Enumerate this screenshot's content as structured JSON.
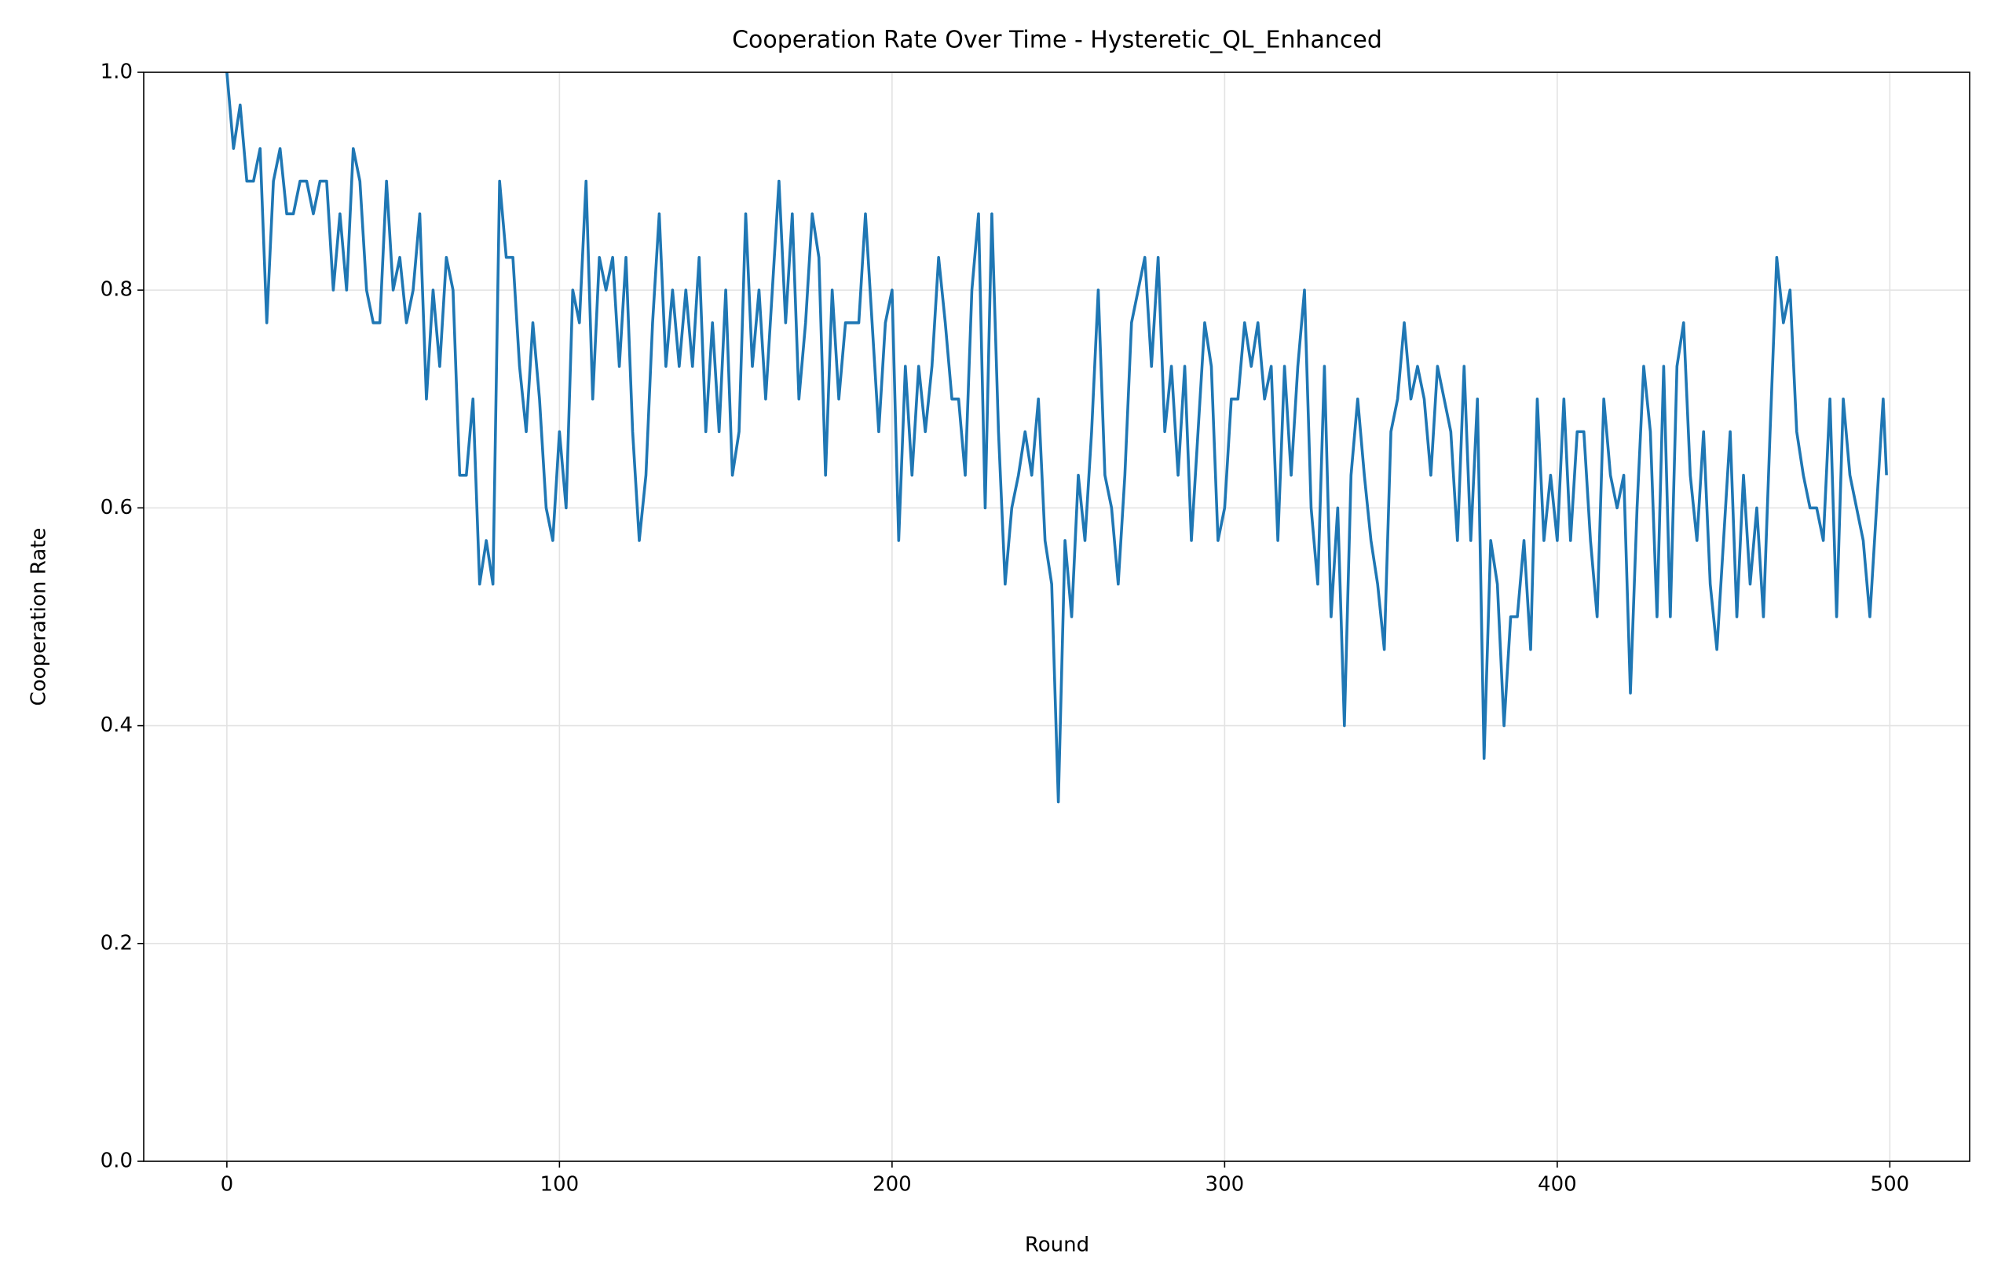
{
  "chart_data": {
    "type": "line",
    "title": "Cooperation Rate Over Time - Hysteretic_QL_Enhanced",
    "x_label": "Round",
    "y_label": "Cooperation Rate",
    "x": [
      0,
      2,
      4,
      6,
      8,
      10,
      12,
      14,
      16,
      18,
      20,
      22,
      24,
      26,
      28,
      30,
      32,
      34,
      36,
      38,
      40,
      42,
      44,
      46,
      48,
      50,
      52,
      54,
      56,
      58,
      60,
      62,
      64,
      66,
      68,
      70,
      72,
      74,
      76,
      78,
      80,
      82,
      84,
      86,
      88,
      90,
      92,
      94,
      96,
      98,
      100,
      102,
      104,
      106,
      108,
      110,
      112,
      114,
      116,
      118,
      120,
      122,
      124,
      126,
      128,
      130,
      132,
      134,
      136,
      138,
      140,
      142,
      144,
      146,
      148,
      150,
      152,
      154,
      156,
      158,
      160,
      162,
      164,
      166,
      168,
      170,
      172,
      174,
      176,
      178,
      180,
      182,
      184,
      186,
      188,
      190,
      192,
      194,
      196,
      198,
      200,
      202,
      204,
      206,
      208,
      210,
      212,
      214,
      216,
      218,
      220,
      222,
      224,
      226,
      228,
      230,
      232,
      234,
      236,
      238,
      240,
      242,
      244,
      246,
      248,
      250,
      252,
      254,
      256,
      258,
      260,
      262,
      264,
      266,
      268,
      270,
      272,
      274,
      276,
      278,
      280,
      282,
      284,
      286,
      288,
      290,
      292,
      294,
      296,
      298,
      300,
      302,
      304,
      306,
      308,
      310,
      312,
      314,
      316,
      318,
      320,
      322,
      324,
      326,
      328,
      330,
      332,
      334,
      336,
      338,
      340,
      342,
      344,
      346,
      348,
      350,
      352,
      354,
      356,
      358,
      360,
      362,
      364,
      366,
      368,
      370,
      372,
      374,
      376,
      378,
      380,
      382,
      384,
      386,
      388,
      390,
      392,
      394,
      396,
      398,
      400,
      402,
      404,
      406,
      408,
      410,
      412,
      414,
      416,
      418,
      420,
      422,
      424,
      426,
      428,
      430,
      432,
      434,
      436,
      438,
      440,
      442,
      444,
      446,
      448,
      450,
      452,
      454,
      456,
      458,
      460,
      462,
      464,
      466,
      468,
      470,
      472,
      474,
      476,
      478,
      480,
      482,
      484,
      486,
      488,
      490,
      492,
      494,
      496,
      498,
      499
    ],
    "series": [
      {
        "name": "Cooperation Rate",
        "color": "#1f77b4",
        "values": [
          1.0,
          0.93,
          0.97,
          0.9,
          0.9,
          0.93,
          0.77,
          0.9,
          0.93,
          0.87,
          0.87,
          0.9,
          0.9,
          0.87,
          0.9,
          0.9,
          0.8,
          0.87,
          0.8,
          0.93,
          0.9,
          0.8,
          0.77,
          0.77,
          0.9,
          0.8,
          0.83,
          0.77,
          0.8,
          0.87,
          0.7,
          0.8,
          0.73,
          0.83,
          0.8,
          0.63,
          0.63,
          0.7,
          0.53,
          0.57,
          0.53,
          0.9,
          0.83,
          0.83,
          0.73,
          0.67,
          0.77,
          0.7,
          0.6,
          0.57,
          0.67,
          0.6,
          0.8,
          0.77,
          0.9,
          0.7,
          0.83,
          0.8,
          0.83,
          0.73,
          0.83,
          0.67,
          0.57,
          0.63,
          0.77,
          0.87,
          0.73,
          0.8,
          0.73,
          0.8,
          0.73,
          0.83,
          0.67,
          0.77,
          0.67,
          0.8,
          0.63,
          0.67,
          0.87,
          0.73,
          0.8,
          0.7,
          0.8,
          0.9,
          0.77,
          0.87,
          0.7,
          0.77,
          0.87,
          0.83,
          0.63,
          0.8,
          0.7,
          0.77,
          0.77,
          0.77,
          0.87,
          0.77,
          0.67,
          0.77,
          0.8,
          0.57,
          0.73,
          0.63,
          0.73,
          0.67,
          0.73,
          0.83,
          0.77,
          0.7,
          0.7,
          0.63,
          0.8,
          0.87,
          0.6,
          0.87,
          0.67,
          0.53,
          0.6,
          0.63,
          0.67,
          0.63,
          0.7,
          0.57,
          0.53,
          0.33,
          0.57,
          0.5,
          0.63,
          0.57,
          0.67,
          0.8,
          0.63,
          0.6,
          0.53,
          0.63,
          0.77,
          0.8,
          0.83,
          0.73,
          0.83,
          0.67,
          0.73,
          0.63,
          0.73,
          0.57,
          0.67,
          0.77,
          0.73,
          0.57,
          0.6,
          0.7,
          0.7,
          0.77,
          0.73,
          0.77,
          0.7,
          0.73,
          0.57,
          0.73,
          0.63,
          0.73,
          0.8,
          0.6,
          0.53,
          0.73,
          0.5,
          0.6,
          0.4,
          0.63,
          0.7,
          0.63,
          0.57,
          0.53,
          0.47,
          0.67,
          0.7,
          0.77,
          0.7,
          0.73,
          0.7,
          0.63,
          0.73,
          0.7,
          0.67,
          0.57,
          0.73,
          0.57,
          0.7,
          0.37,
          0.57,
          0.53,
          0.4,
          0.5,
          0.5,
          0.57,
          0.47,
          0.7,
          0.57,
          0.63,
          0.57,
          0.7,
          0.57,
          0.67,
          0.67,
          0.57,
          0.5,
          0.7,
          0.63,
          0.6,
          0.63,
          0.43,
          0.6,
          0.73,
          0.67,
          0.5,
          0.73,
          0.5,
          0.73,
          0.77,
          0.63,
          0.57,
          0.67,
          0.53,
          0.47,
          0.57,
          0.67,
          0.5,
          0.63,
          0.53,
          0.6,
          0.5,
          0.67,
          0.83,
          0.77,
          0.8,
          0.67,
          0.63,
          0.6,
          0.6,
          0.57,
          0.7,
          0.5,
          0.7,
          0.63,
          0.6,
          0.57,
          0.5,
          0.6,
          0.7,
          0.63
        ]
      }
    ],
    "xlim": [
      -25,
      524
    ],
    "ylim": [
      0,
      1
    ],
    "xticks": [
      0,
      100,
      200,
      300,
      400,
      500
    ],
    "yticks": [
      {
        "value": 0,
        "label": "0.0"
      },
      0.2,
      0.4,
      0.6,
      0.8,
      {
        "value": 1,
        "label": "1.0"
      }
    ],
    "grid": true
  }
}
